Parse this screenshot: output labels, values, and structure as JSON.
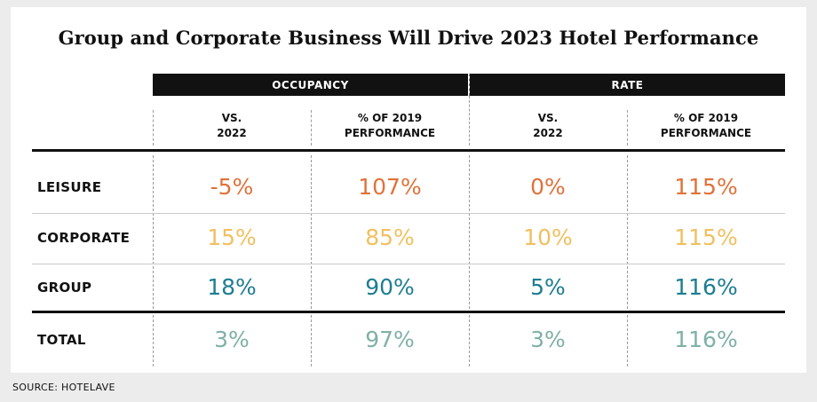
{
  "chart_data": {
    "type": "table",
    "title": "Group and Corporate Business Will Drive 2023 Hotel Performance",
    "column_groups": [
      "OCCUPANCY",
      "RATE"
    ],
    "columns": [
      {
        "line1": "VS.",
        "line2": "2022"
      },
      {
        "line1": "% OF 2019",
        "line2": "PERFORMANCE"
      },
      {
        "line1": "VS.",
        "line2": "2022"
      },
      {
        "line1": "% OF 2019",
        "line2": "PERFORMANCE"
      }
    ],
    "rows": [
      {
        "label": "LEISURE",
        "color": "#e0723a",
        "values": [
          "-5%",
          "107%",
          "0%",
          "115%"
        ]
      },
      {
        "label": "CORPORATE",
        "color": "#f0c060",
        "values": [
          "15%",
          "85%",
          "10%",
          "115%"
        ]
      },
      {
        "label": "GROUP",
        "color": "#1e7d92",
        "values": [
          "18%",
          "90%",
          "5%",
          "116%"
        ]
      },
      {
        "label": "TOTAL",
        "color": "#7fb1a6",
        "values": [
          "3%",
          "97%",
          "3%",
          "116%"
        ]
      }
    ]
  },
  "source": "SOURCE: HOTELAVE"
}
